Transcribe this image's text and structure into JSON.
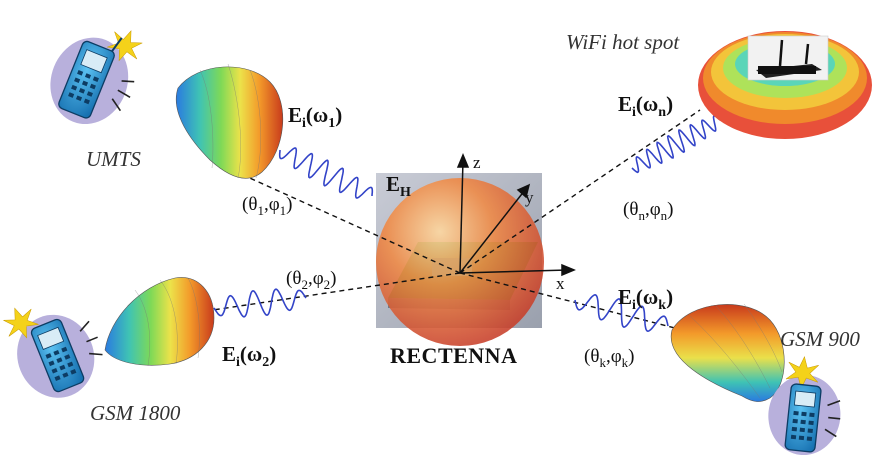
{
  "center": {
    "title": "RECTENNA",
    "field": {
      "main": "E",
      "sub": "H"
    },
    "axes": {
      "x": "x",
      "y": "y",
      "z": "z"
    }
  },
  "sources": [
    {
      "id": "umts",
      "name": "UMTS",
      "field": {
        "main": "E",
        "sub": "i",
        "arg": "ω",
        "argsub": "1"
      },
      "angle": {
        "t": "θ",
        "tsub": "1",
        "p": "φ",
        "psub": "1"
      }
    },
    {
      "id": "wifi",
      "name": "WiFi hot spot",
      "field": {
        "main": "E",
        "sub": "i",
        "arg": "ω",
        "argsub": "n"
      },
      "angle": {
        "t": "θ",
        "tsub": "n",
        "p": "φ",
        "psub": "n"
      }
    },
    {
      "id": "gsm1800",
      "name": "GSM 1800",
      "field": {
        "main": "E",
        "sub": "i",
        "arg": "ω",
        "argsub": "2"
      },
      "angle": {
        "t": "θ",
        "tsub": "2",
        "p": "φ",
        "psub": "2"
      }
    },
    {
      "id": "gsm900",
      "name": "GSM 900",
      "field": {
        "main": "E",
        "sub": "i",
        "arg": "ω",
        "argsub": "k"
      },
      "angle": {
        "t": "θ",
        "tsub": "k",
        "p": "φ",
        "psub": "k"
      }
    }
  ],
  "colors": {
    "wave": "#3344c8",
    "ground_plane": "#2f9a3a",
    "sphere": "#e2623a",
    "phone_body": "#1e88c8",
    "blob": "#b8b0dc",
    "burst": "#f4d21a"
  },
  "icons": [
    "mobile-phone-icon",
    "wifi-router-icon",
    "radiation-pattern-icon",
    "signal-burst-icon"
  ]
}
